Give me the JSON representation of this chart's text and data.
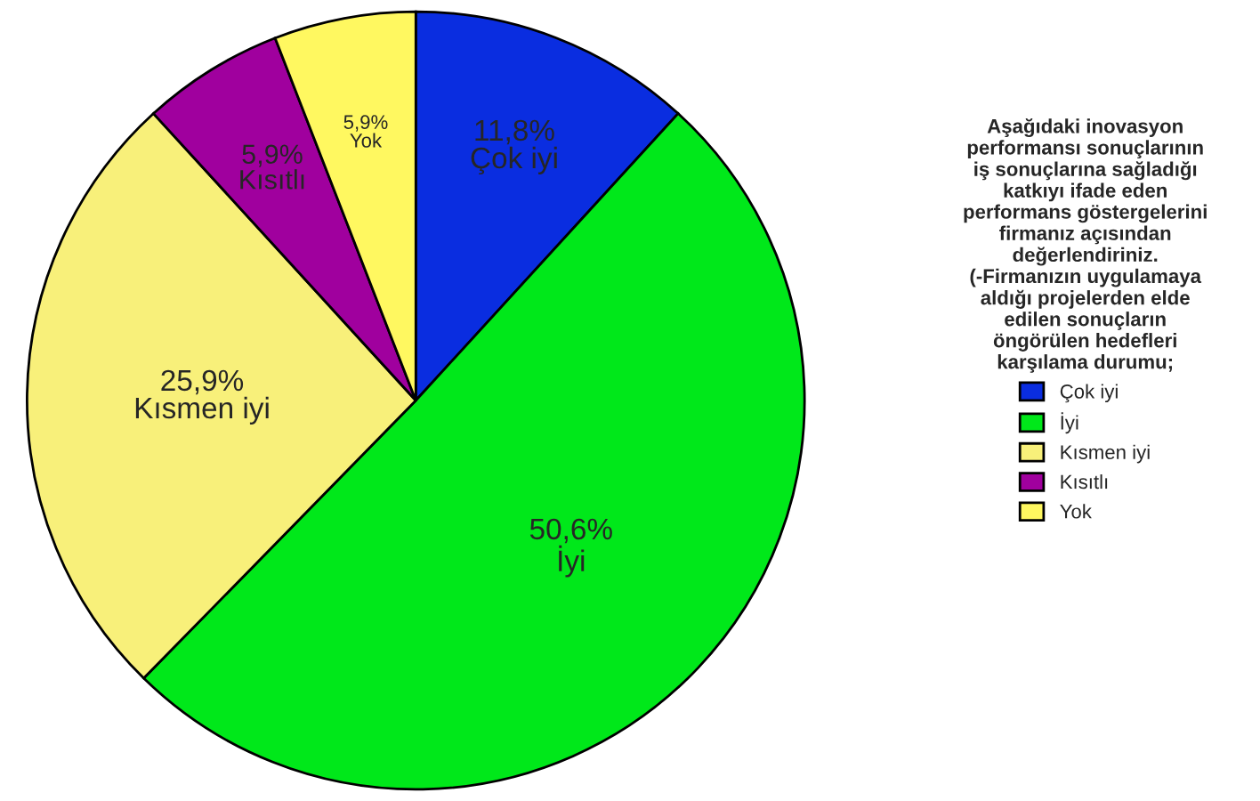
{
  "chart_data": {
    "type": "pie",
    "legend_title": "Aşağıdaki inovasyon performansı sonuçlarının iş sonuçlarına sağladığı katkıyı ifade eden performans göstergelerini firmanız açısından değerlendiriniz. (-Firmanızın uygulamaya aldığı projelerden elde edilen sonuçların öngörülen hedefleri karşılama durumu;",
    "categories": [
      "Çok iyi",
      "İyi",
      "Kısmen iyi",
      "Kısıtlı",
      "Yok"
    ],
    "values": [
      11.8,
      50.6,
      25.9,
      5.9,
      5.9
    ],
    "value_labels": [
      "11,8%",
      "50,6%",
      "25,9%",
      "5,9%",
      "5,9%"
    ],
    "colors": [
      "#0a2de0",
      "#00e81a",
      "#f8f07a",
      "#a0009e",
      "#fff860"
    ],
    "legend": "right"
  }
}
